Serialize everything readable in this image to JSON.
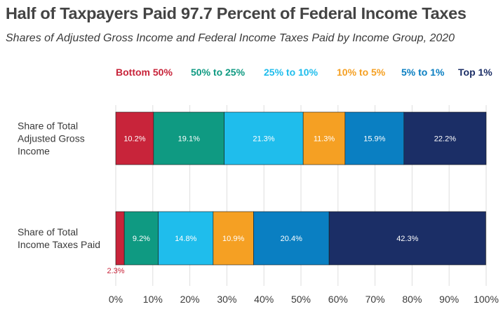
{
  "title": "Half of Taxpayers Paid 97.7 Percent of Federal Income Taxes",
  "subtitle": "Shares of Adjusted Gross Income and Federal Income Taxes Paid by Income Group, 2020",
  "colors": {
    "Bottom 50%": "#c8243a",
    "50% to 25%": "#0f9a82",
    "25% to 10%": "#1fbdec",
    "10% to 5%": "#f5a023",
    "5% to 1%": "#0a7fc2",
    "Top 1%": "#1b2e66"
  },
  "chart_data": {
    "type": "bar",
    "orientation": "horizontal",
    "stacked": true,
    "categories": [
      "Share of Total Adjusted Gross Income",
      "Share of Total Income Taxes Paid"
    ],
    "category_lines": [
      [
        "Share of Total",
        "Adjusted Gross",
        "Income"
      ],
      [
        "Share of Total",
        "Income Taxes Paid"
      ]
    ],
    "series": [
      {
        "name": "Bottom 50%",
        "values": [
          10.2,
          2.3
        ],
        "labels": [
          "10.2%",
          "2.3%"
        ]
      },
      {
        "name": "50% to 25%",
        "values": [
          19.1,
          9.2
        ],
        "labels": [
          "19.1%",
          "9.2%"
        ]
      },
      {
        "name": "25% to 10%",
        "values": [
          21.3,
          14.8
        ],
        "labels": [
          "21.3%",
          "14.8%"
        ]
      },
      {
        "name": "10% to 5%",
        "values": [
          11.3,
          10.9
        ],
        "labels": [
          "11.3%",
          "10.9%"
        ]
      },
      {
        "name": "5% to 1%",
        "values": [
          15.9,
          20.4
        ],
        "labels": [
          "15.9%",
          "20.4%"
        ]
      },
      {
        "name": "Top 1%",
        "values": [
          22.2,
          42.3
        ],
        "labels": [
          "22.2%",
          "42.3%"
        ]
      }
    ],
    "xlim": [
      0,
      100
    ],
    "xticks": [
      0,
      10,
      20,
      30,
      40,
      50,
      60,
      70,
      80,
      90,
      100
    ],
    "xtick_labels": [
      "0%",
      "10%",
      "20%",
      "30%",
      "40%",
      "50%",
      "60%",
      "70%",
      "80%",
      "90%",
      "100%"
    ],
    "grid": true,
    "legend_position": "top"
  }
}
